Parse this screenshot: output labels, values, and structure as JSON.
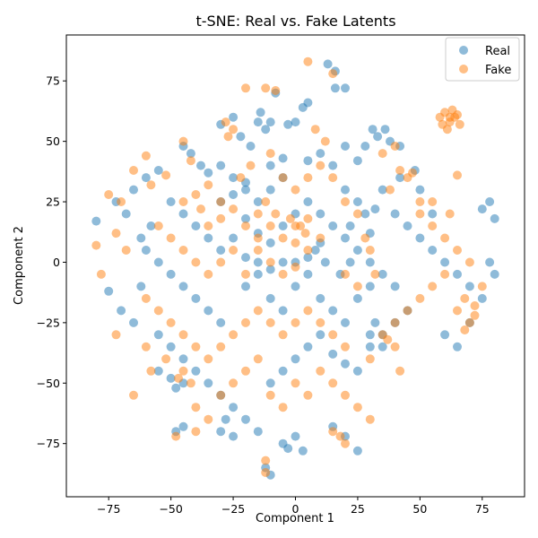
{
  "chart_data": {
    "type": "scatter",
    "title": "t-SNE: Real vs. Fake Latents",
    "xlabel": "Component 1",
    "ylabel": "Component 2",
    "xlim": [
      -92,
      92
    ],
    "ylim": [
      -97,
      94
    ],
    "xticks": [
      -75,
      -50,
      -25,
      0,
      25,
      50,
      75
    ],
    "xtick_labels": [
      "−75",
      "−50",
      "−25",
      "0",
      "25",
      "50",
      "75"
    ],
    "yticks": [
      -75,
      -50,
      -25,
      0,
      25,
      50,
      75
    ],
    "ytick_labels": [
      "−75",
      "−50",
      "−25",
      "0",
      "25",
      "50",
      "75"
    ],
    "grid": false,
    "legend_position": "top-right",
    "series": [
      {
        "name": "Real",
        "color": "#1f77b4",
        "opacity": 0.5,
        "points": [
          [
            -30,
            57
          ],
          [
            -25,
            60
          ],
          [
            -22,
            52
          ],
          [
            -15,
            58
          ],
          [
            -14,
            62
          ],
          [
            -12,
            55
          ],
          [
            -10,
            58
          ],
          [
            -18,
            48
          ],
          [
            -8,
            70
          ],
          [
            -3,
            57
          ],
          [
            0,
            58
          ],
          [
            5,
            66
          ],
          [
            3,
            64
          ],
          [
            13,
            82
          ],
          [
            16,
            79
          ],
          [
            16,
            72
          ],
          [
            20,
            72
          ],
          [
            28,
            48
          ],
          [
            33,
            52
          ],
          [
            36,
            55
          ],
          [
            38,
            50
          ],
          [
            42,
            48
          ],
          [
            31,
            55
          ],
          [
            -45,
            48
          ],
          [
            -42,
            45
          ],
          [
            -38,
            40
          ],
          [
            -35,
            37
          ],
          [
            -30,
            40
          ],
          [
            -25,
            35
          ],
          [
            -20,
            33
          ],
          [
            -10,
            40
          ],
          [
            -5,
            43
          ],
          [
            5,
            42
          ],
          [
            10,
            45
          ],
          [
            15,
            40
          ],
          [
            20,
            48
          ],
          [
            25,
            42
          ],
          [
            -50,
            25
          ],
          [
            -45,
            20
          ],
          [
            -40,
            15
          ],
          [
            -35,
            10
          ],
          [
            -30,
            5
          ],
          [
            -25,
            10
          ],
          [
            -20,
            18
          ],
          [
            -15,
            12
          ],
          [
            -10,
            8
          ],
          [
            -5,
            15
          ],
          [
            0,
            20
          ],
          [
            5,
            25
          ],
          [
            10,
            20
          ],
          [
            15,
            15
          ],
          [
            20,
            10
          ],
          [
            25,
            5
          ],
          [
            -60,
            5
          ],
          [
            -55,
            0
          ],
          [
            -50,
            -5
          ],
          [
            -45,
            -10
          ],
          [
            -40,
            -15
          ],
          [
            -35,
            -20
          ],
          [
            -30,
            -25
          ],
          [
            -20,
            -10
          ],
          [
            -15,
            -5
          ],
          [
            -10,
            -15
          ],
          [
            -5,
            -20
          ],
          [
            0,
            -10
          ],
          [
            5,
            -5
          ],
          [
            10,
            -15
          ],
          [
            15,
            -20
          ],
          [
            20,
            -25
          ],
          [
            25,
            -15
          ],
          [
            30,
            -10
          ],
          [
            -55,
            -30
          ],
          [
            -50,
            -35
          ],
          [
            -45,
            -40
          ],
          [
            -40,
            -45
          ],
          [
            -35,
            -50
          ],
          [
            -30,
            -55
          ],
          [
            -25,
            -60
          ],
          [
            -20,
            -65
          ],
          [
            -15,
            -70
          ],
          [
            -10,
            -50
          ],
          [
            -5,
            -45
          ],
          [
            0,
            -40
          ],
          [
            5,
            -35
          ],
          [
            10,
            -30
          ],
          [
            15,
            -38
          ],
          [
            20,
            -42
          ],
          [
            25,
            -45
          ],
          [
            30,
            -35
          ],
          [
            35,
            -30
          ],
          [
            40,
            -25
          ],
          [
            45,
            -20
          ],
          [
            -5,
            -75
          ],
          [
            0,
            -72
          ],
          [
            3,
            -78
          ],
          [
            -3,
            -77
          ],
          [
            15,
            -68
          ],
          [
            20,
            -72
          ],
          [
            25,
            -78
          ],
          [
            -50,
            -48
          ],
          [
            -48,
            -52
          ],
          [
            -45,
            -50
          ],
          [
            -55,
            -45
          ],
          [
            -48,
            -70
          ],
          [
            -45,
            -68
          ],
          [
            -30,
            -70
          ],
          [
            -25,
            -72
          ],
          [
            -28,
            -65
          ],
          [
            -75,
            -12
          ],
          [
            -70,
            -20
          ],
          [
            -72,
            25
          ],
          [
            -68,
            20
          ],
          [
            -80,
            17
          ],
          [
            -62,
            -10
          ],
          [
            -65,
            -25
          ],
          [
            55,
            5
          ],
          [
            60,
            0
          ],
          [
            65,
            -5
          ],
          [
            70,
            -10
          ],
          [
            75,
            -15
          ],
          [
            80,
            -5
          ],
          [
            78,
            0
          ],
          [
            75,
            22
          ],
          [
            78,
            25
          ],
          [
            80,
            18
          ],
          [
            60,
            -30
          ],
          [
            65,
            -35
          ],
          [
            70,
            -25
          ],
          [
            40,
            20
          ],
          [
            45,
            15
          ],
          [
            50,
            10
          ],
          [
            55,
            20
          ],
          [
            35,
            30
          ],
          [
            42,
            35
          ],
          [
            48,
            38
          ],
          [
            50,
            30
          ],
          [
            -30,
            25
          ],
          [
            -25,
            28
          ],
          [
            -20,
            30
          ],
          [
            -15,
            25
          ],
          [
            -10,
            30
          ],
          [
            -5,
            35
          ],
          [
            8,
            5
          ],
          [
            12,
            0
          ],
          [
            18,
            -5
          ],
          [
            22,
            0
          ],
          [
            30,
            0
          ],
          [
            35,
            -5
          ],
          [
            40,
            -10
          ],
          [
            -65,
            30
          ],
          [
            -60,
            35
          ],
          [
            -55,
            38
          ],
          [
            -62,
            10
          ],
          [
            -58,
            15
          ],
          [
            -12,
            -85
          ],
          [
            -10,
            -88
          ],
          [
            30,
            -30
          ],
          [
            35,
            -35
          ],
          [
            32,
            -25
          ],
          [
            -20,
            2
          ],
          [
            -15,
            0
          ],
          [
            -10,
            -3
          ],
          [
            -5,
            0
          ],
          [
            0,
            0
          ],
          [
            5,
            2
          ],
          [
            10,
            8
          ],
          [
            20,
            30
          ],
          [
            25,
            25
          ],
          [
            22,
            15
          ],
          [
            28,
            20
          ],
          [
            32,
            22
          ],
          [
            30,
            12
          ]
        ]
      },
      {
        "name": "Fake",
        "color": "#ff7f0e",
        "opacity": 0.5,
        "points": [
          [
            58,
            60
          ],
          [
            60,
            62
          ],
          [
            62,
            58
          ],
          [
            64,
            60
          ],
          [
            66,
            57
          ],
          [
            61,
            55
          ],
          [
            63,
            63
          ],
          [
            59,
            57
          ],
          [
            65,
            61
          ],
          [
            62,
            60
          ],
          [
            -25,
            55
          ],
          [
            -28,
            58
          ],
          [
            -27,
            52
          ],
          [
            -20,
            72
          ],
          [
            -12,
            72
          ],
          [
            -8,
            71
          ],
          [
            5,
            83
          ],
          [
            15,
            78
          ],
          [
            -45,
            50
          ],
          [
            -42,
            42
          ],
          [
            -35,
            32
          ],
          [
            -40,
            28
          ],
          [
            -45,
            25
          ],
          [
            -38,
            22
          ],
          [
            -30,
            18
          ],
          [
            -25,
            22
          ],
          [
            -20,
            15
          ],
          [
            -15,
            20
          ],
          [
            -10,
            15
          ],
          [
            -5,
            10
          ],
          [
            0,
            15
          ],
          [
            5,
            18
          ],
          [
            -55,
            15
          ],
          [
            -50,
            10
          ],
          [
            -45,
            5
          ],
          [
            -40,
            0
          ],
          [
            -35,
            -5
          ],
          [
            -30,
            0
          ],
          [
            -25,
            5
          ],
          [
            -20,
            -5
          ],
          [
            -15,
            5
          ],
          [
            -10,
            0
          ],
          [
            -5,
            -5
          ],
          [
            0,
            -2
          ],
          [
            5,
            5
          ],
          [
            10,
            10
          ],
          [
            -60,
            -15
          ],
          [
            -55,
            -20
          ],
          [
            -50,
            -25
          ],
          [
            -45,
            -30
          ],
          [
            -40,
            -35
          ],
          [
            -35,
            -40
          ],
          [
            -30,
            -35
          ],
          [
            -25,
            -30
          ],
          [
            -20,
            -25
          ],
          [
            -15,
            -20
          ],
          [
            -10,
            -25
          ],
          [
            -5,
            -30
          ],
          [
            0,
            -25
          ],
          [
            5,
            -20
          ],
          [
            10,
            -25
          ],
          [
            15,
            -30
          ],
          [
            20,
            -35
          ],
          [
            -45,
            -45
          ],
          [
            -47,
            -48
          ],
          [
            -42,
            -50
          ],
          [
            -40,
            -60
          ],
          [
            -35,
            -65
          ],
          [
            -30,
            -55
          ],
          [
            -25,
            -50
          ],
          [
            -20,
            -45
          ],
          [
            -15,
            -40
          ],
          [
            -10,
            -55
          ],
          [
            -5,
            -60
          ],
          [
            0,
            -50
          ],
          [
            5,
            -55
          ],
          [
            10,
            -45
          ],
          [
            15,
            -50
          ],
          [
            20,
            -55
          ],
          [
            25,
            -60
          ],
          [
            30,
            -65
          ],
          [
            -12,
            -87
          ],
          [
            -12,
            -82
          ],
          [
            18,
            -72
          ],
          [
            15,
            -70
          ],
          [
            20,
            -75
          ],
          [
            -48,
            -72
          ],
          [
            -40,
            -70
          ],
          [
            -70,
            25
          ],
          [
            -75,
            28
          ],
          [
            -72,
            12
          ],
          [
            -68,
            5
          ],
          [
            -78,
            -5
          ],
          [
            -72,
            -30
          ],
          [
            -80,
            7
          ],
          [
            -60,
            44
          ],
          [
            -65,
            38
          ],
          [
            -58,
            32
          ],
          [
            -52,
            36
          ],
          [
            35,
            45
          ],
          [
            40,
            48
          ],
          [
            42,
            38
          ],
          [
            45,
            35
          ],
          [
            38,
            30
          ],
          [
            50,
            25
          ],
          [
            55,
            15
          ],
          [
            60,
            10
          ],
          [
            65,
            5
          ],
          [
            70,
            0
          ],
          [
            75,
            -10
          ],
          [
            68,
            -15
          ],
          [
            72,
            -18
          ],
          [
            65,
            -20
          ],
          [
            70,
            -25
          ],
          [
            68,
            -28
          ],
          [
            72,
            -22
          ],
          [
            60,
            -5
          ],
          [
            55,
            -10
          ],
          [
            50,
            -15
          ],
          [
            45,
            -20
          ],
          [
            40,
            -25
          ],
          [
            35,
            -30
          ],
          [
            37,
            -32
          ],
          [
            40,
            -35
          ],
          [
            42,
            -45
          ],
          [
            30,
            -40
          ],
          [
            50,
            20
          ],
          [
            55,
            25
          ],
          [
            62,
            20
          ],
          [
            65,
            36
          ],
          [
            47,
            37
          ],
          [
            -35,
            15
          ],
          [
            -30,
            25
          ],
          [
            -22,
            35
          ],
          [
            -18,
            40
          ],
          [
            -10,
            45
          ],
          [
            -5,
            35
          ],
          [
            0,
            30
          ],
          [
            5,
            35
          ],
          [
            10,
            40
          ],
          [
            15,
            35
          ],
          [
            8,
            55
          ],
          [
            12,
            50
          ],
          [
            20,
            25
          ],
          [
            25,
            20
          ],
          [
            28,
            10
          ],
          [
            30,
            5
          ],
          [
            32,
            -5
          ],
          [
            25,
            -10
          ],
          [
            20,
            -5
          ],
          [
            -65,
            -55
          ],
          [
            -58,
            -45
          ],
          [
            -52,
            -40
          ],
          [
            -60,
            -35
          ],
          [
            2,
            15
          ],
          [
            4,
            12
          ],
          [
            -2,
            18
          ],
          [
            0,
            8
          ],
          [
            -8,
            20
          ],
          [
            -12,
            25
          ],
          [
            -15,
            10
          ]
        ]
      }
    ]
  }
}
